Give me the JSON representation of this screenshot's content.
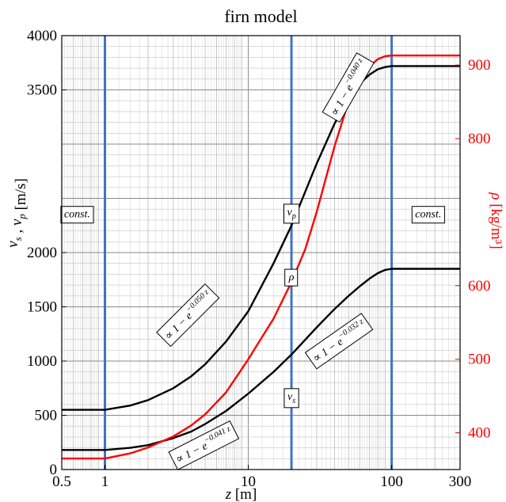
{
  "chart_data": {
    "type": "line",
    "title": "firn model",
    "xlabel": "z [m]",
    "ylabel": "v_s , v_p [m/s]",
    "ylabel_right": "ρ [kg/m³]",
    "xscale": "log",
    "xlim": [
      0.5,
      300
    ],
    "ylim": [
      0,
      4000
    ],
    "ylim_right": [
      350,
      940
    ],
    "x_ticks": [
      0.5,
      1,
      10,
      100,
      300
    ],
    "x_tick_labels": [
      "0.5",
      "1",
      "10",
      "100",
      "300"
    ],
    "y_ticks": [
      0,
      500,
      1000,
      1500,
      2000,
      3500,
      4000
    ],
    "y_tick_labels": [
      "0",
      "500",
      "1000",
      "1500",
      "2000",
      "3500",
      "4000"
    ],
    "y_right_ticks": [
      400,
      500,
      600,
      800,
      900
    ],
    "y_right_tick_labels": [
      "400",
      "500",
      "600",
      "800",
      "900"
    ],
    "grid": true,
    "vertical_lines": [
      1,
      20,
      100
    ],
    "series": [
      {
        "name": "v_p",
        "axis": "left",
        "color": "#000000",
        "x": [
          0.5,
          1,
          1.5,
          2,
          3,
          4,
          5,
          7,
          10,
          15,
          20,
          30,
          40,
          50,
          60,
          70,
          80,
          90,
          100,
          300
        ],
        "y": [
          550,
          550,
          590,
          640,
          750,
          860,
          970,
          1180,
          1460,
          1900,
          2250,
          2820,
          3190,
          3420,
          3560,
          3640,
          3690,
          3710,
          3720,
          3720
        ]
      },
      {
        "name": "v_s",
        "axis": "left",
        "color": "#000000",
        "x": [
          0.5,
          1,
          1.5,
          2,
          3,
          4,
          5,
          7,
          10,
          15,
          20,
          30,
          40,
          50,
          60,
          70,
          80,
          90,
          100,
          300
        ],
        "y": [
          180,
          180,
          200,
          225,
          290,
          350,
          420,
          540,
          700,
          900,
          1060,
          1310,
          1480,
          1600,
          1690,
          1760,
          1810,
          1840,
          1850,
          1850
        ]
      },
      {
        "name": "ρ",
        "axis": "right",
        "color": "#ff0000",
        "x": [
          0.5,
          1,
          1.5,
          2,
          3,
          4,
          5,
          7,
          10,
          12,
          15,
          20,
          25,
          30,
          40,
          50,
          60,
          70,
          80,
          90,
          100,
          300
        ],
        "y": [
          365,
          365,
          372,
          380,
          395,
          410,
          425,
          455,
          500,
          525,
          555,
          605,
          650,
          700,
          790,
          850,
          880,
          898,
          908,
          912,
          913,
          913
        ]
      }
    ],
    "annotations": [
      {
        "id": "vp",
        "text": "v",
        "sub": "p",
        "x": 20,
        "y": 2380
      },
      {
        "id": "vs",
        "text": "v",
        "sub": "s",
        "x": 20,
        "y": 680
      },
      {
        "id": "rho",
        "text": "ρ",
        "x": 20,
        "y": 1780
      },
      {
        "id": "const_left",
        "text": "const.",
        "x": 0.64,
        "y": 2360
      },
      {
        "id": "const_right",
        "text": "const.",
        "x": 180,
        "y": 2360
      },
      {
        "id": "fit_vp_left",
        "text": "∝ 1 − e",
        "sup": "−0.050 z",
        "x": 3.8,
        "y": 1420,
        "angle": -45
      },
      {
        "id": "fit_vp_right",
        "text": "∝ 1 − e",
        "sup": "−0.040 z",
        "x": 50,
        "y": 3520,
        "angle": -60
      },
      {
        "id": "fit_vs_right",
        "text": "∝ 1 − e",
        "sup": "−0.032 z",
        "x": 43,
        "y": 1180,
        "angle": -35
      },
      {
        "id": "fit_rho",
        "text": "∝ 1 − e",
        "sup": "−0.041 z",
        "x": 4.9,
        "y": 220,
        "angle": -27
      }
    ]
  }
}
